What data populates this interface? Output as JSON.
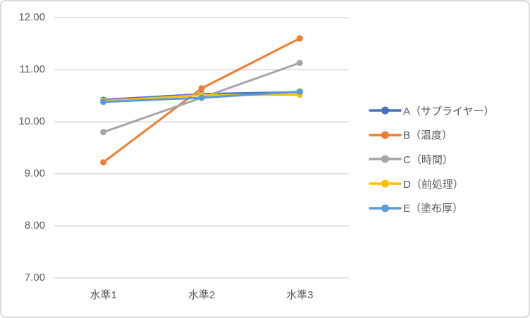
{
  "chart_data": {
    "type": "line",
    "categories": [
      "水準1",
      "水準2",
      "水準3"
    ],
    "series": [
      {
        "name": "A（サプライヤー）",
        "color": "#4472C4",
        "values": [
          10.42,
          10.53,
          10.57
        ]
      },
      {
        "name": "B（温度）",
        "color": "#ED7D31",
        "values": [
          9.22,
          10.64,
          11.6
        ]
      },
      {
        "name": "C（時間）",
        "color": "#A5A5A5",
        "values": [
          9.8,
          10.46,
          11.13
        ]
      },
      {
        "name": "D（前処理）",
        "color": "#FFC000",
        "values": [
          10.4,
          10.51,
          10.52
        ]
      },
      {
        "name": "E（塗布厚）",
        "color": "#5B9BD5",
        "values": [
          10.38,
          10.46,
          10.58
        ]
      }
    ],
    "title": "",
    "xlabel": "",
    "ylabel": "",
    "ylim": [
      7.0,
      12.0
    ],
    "yticks": [
      7,
      8,
      9,
      10,
      11,
      12
    ],
    "ytick_labels": [
      "7.00",
      "8.00",
      "9.00",
      "10.00",
      "11.00",
      "12.00"
    ],
    "grid": true,
    "legend_position": "right",
    "marker": "circle"
  },
  "style": {
    "background": "#FFFFFF",
    "border_color": "#D9D9D9",
    "grid_color": "#D9D9D9",
    "axis_text_color": "#595959"
  }
}
